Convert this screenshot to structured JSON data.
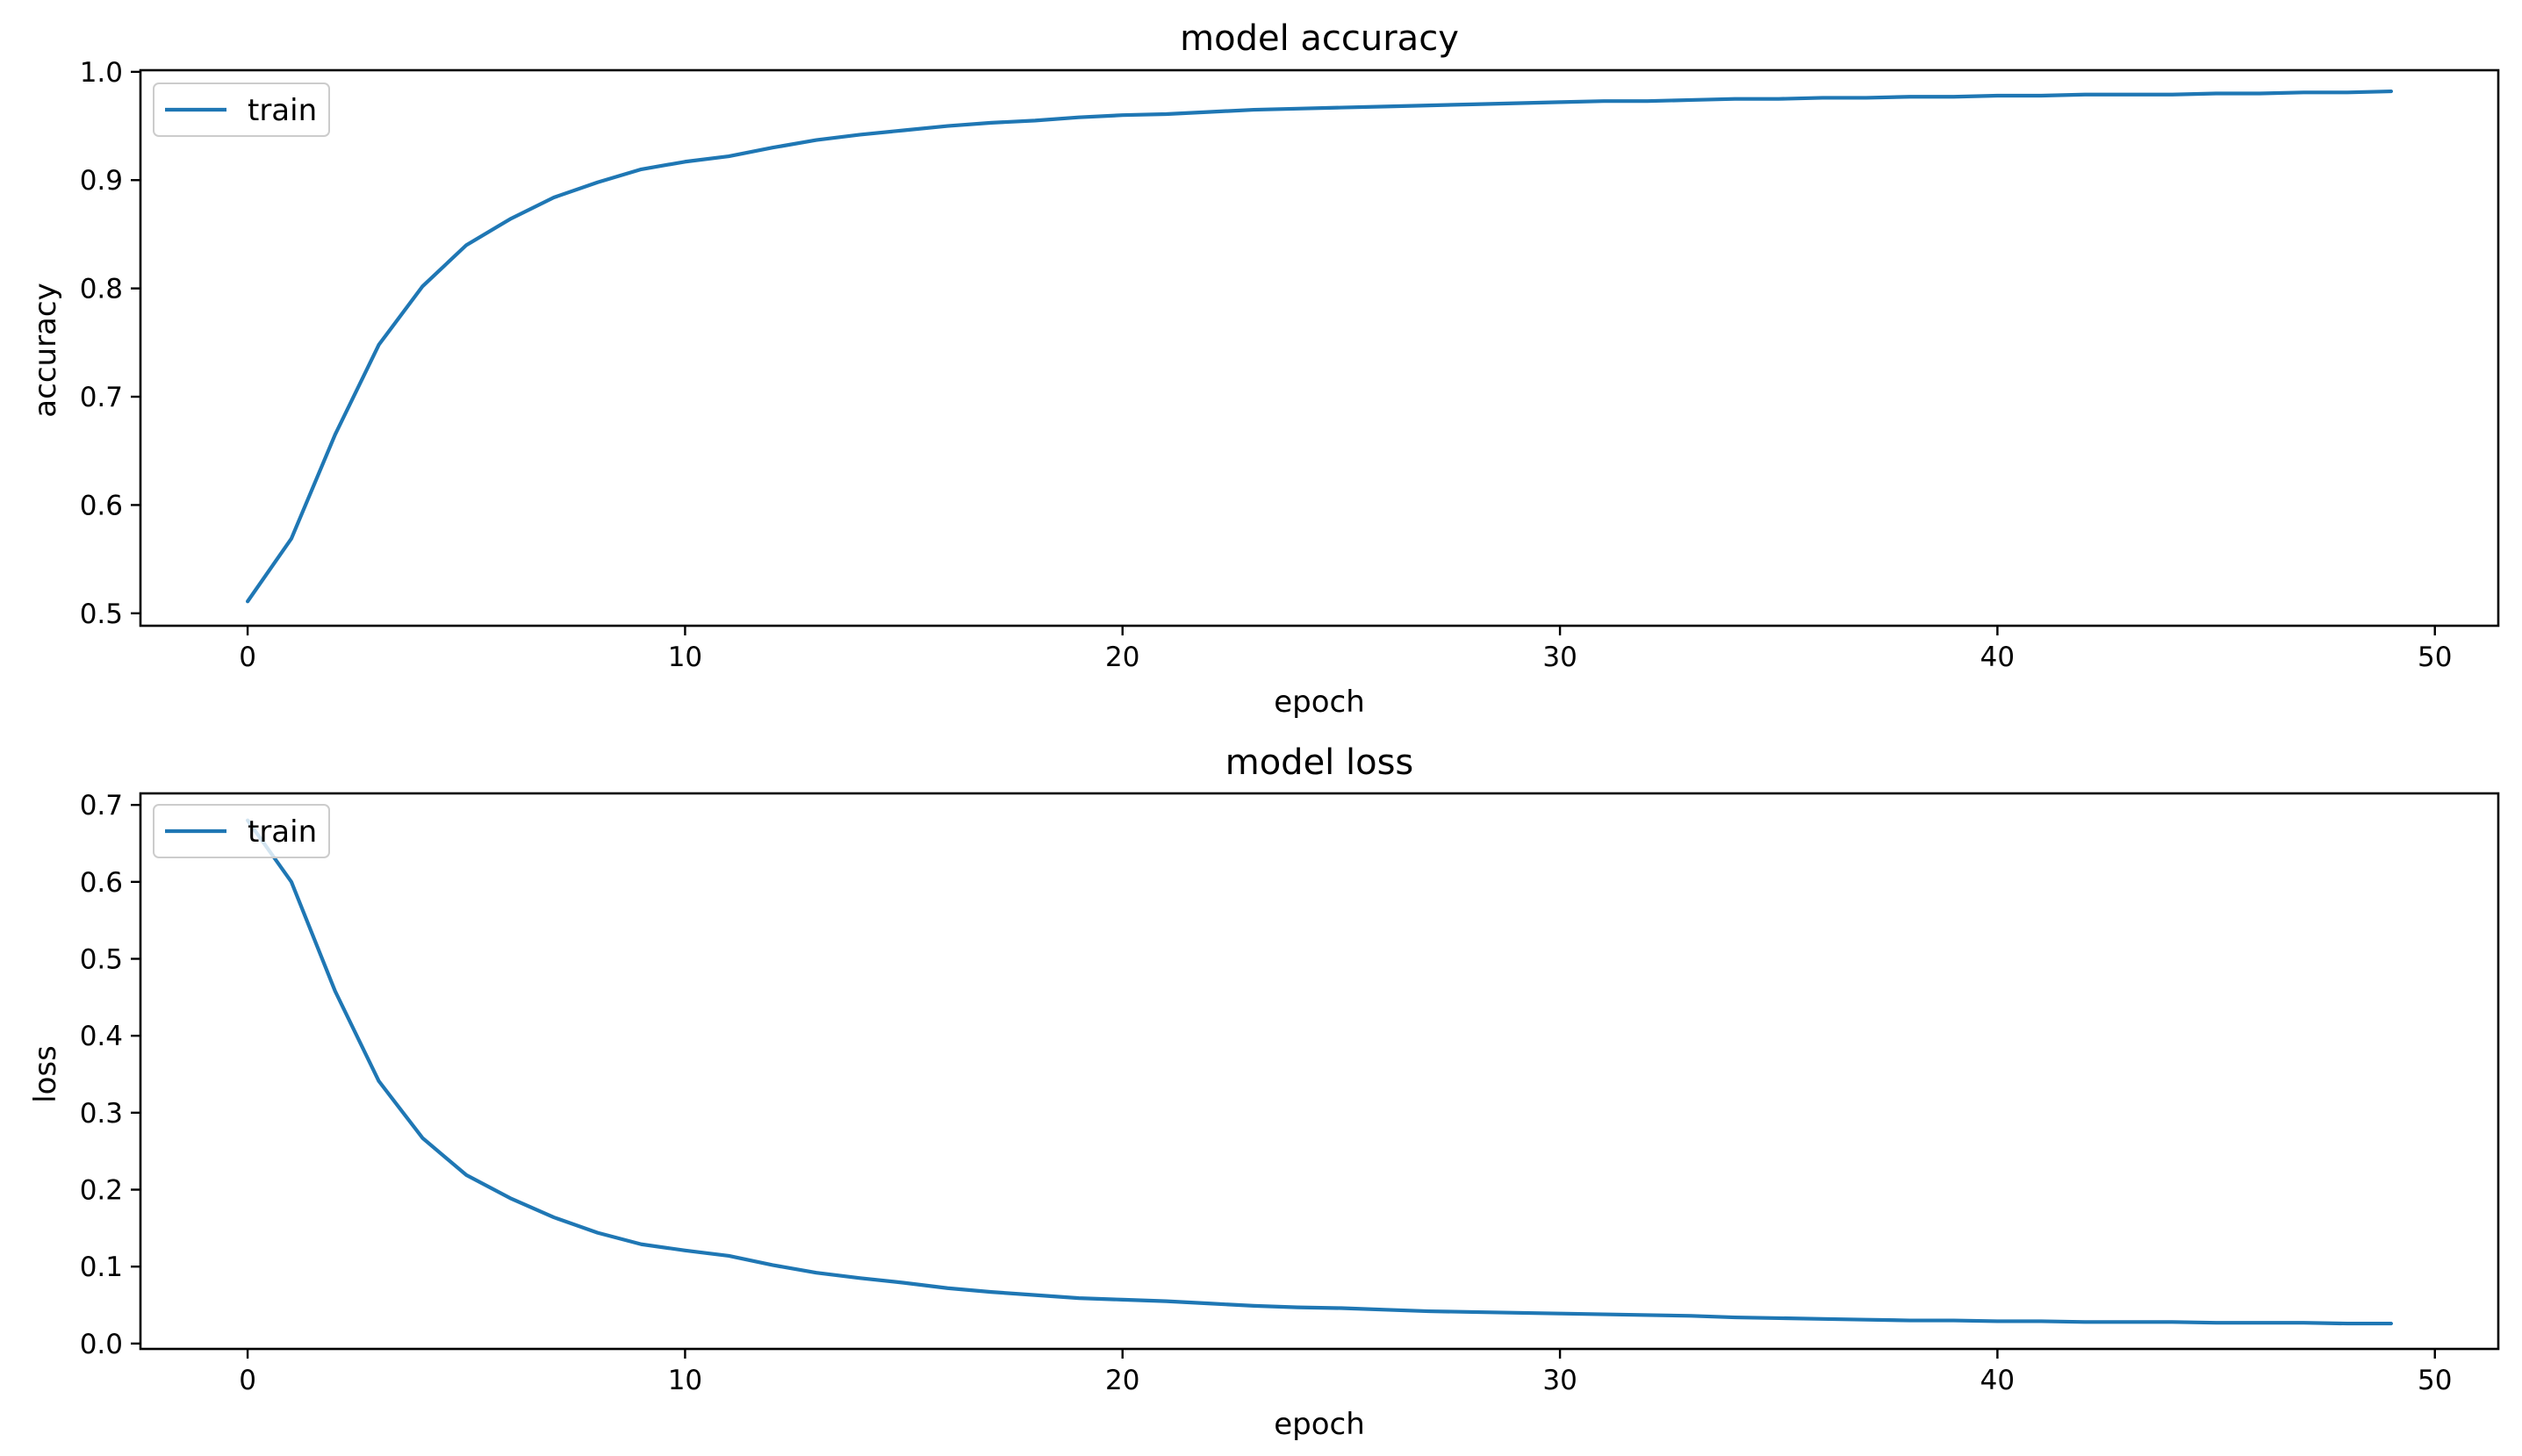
{
  "chart_data": [
    {
      "type": "line",
      "title": "model accuracy",
      "xlabel": "epoch",
      "ylabel": "accuracy",
      "xlim": [
        -2.45,
        51.45
      ],
      "ylim": [
        0.4885,
        1.0015
      ],
      "xticks": [
        0,
        10,
        20,
        30,
        40,
        50
      ],
      "yticks": [
        0.5,
        0.6,
        0.7,
        0.8,
        0.9,
        1.0
      ],
      "xtick_labels": [
        "0",
        "10",
        "20",
        "30",
        "40",
        "50"
      ],
      "ytick_labels": [
        "0.5",
        "0.6",
        "0.7",
        "0.8",
        "0.9",
        "1.0"
      ],
      "grid": false,
      "legend": {
        "placement": "upper-left",
        "entries": [
          "train"
        ]
      },
      "series": [
        {
          "name": "train",
          "color": "#1f77b4",
          "x": [
            0,
            1,
            2,
            3,
            4,
            5,
            6,
            7,
            8,
            9,
            10,
            11,
            12,
            13,
            14,
            15,
            16,
            17,
            18,
            19,
            20,
            21,
            22,
            23,
            24,
            25,
            26,
            27,
            28,
            29,
            30,
            31,
            32,
            33,
            34,
            35,
            36,
            37,
            38,
            39,
            40,
            41,
            42,
            43,
            44,
            45,
            46,
            47,
            48,
            49
          ],
          "y": [
            0.511,
            0.569,
            0.665,
            0.748,
            0.802,
            0.84,
            0.864,
            0.884,
            0.898,
            0.91,
            0.917,
            0.922,
            0.93,
            0.937,
            0.942,
            0.946,
            0.95,
            0.953,
            0.955,
            0.958,
            0.96,
            0.961,
            0.963,
            0.965,
            0.966,
            0.967,
            0.968,
            0.969,
            0.97,
            0.971,
            0.972,
            0.973,
            0.973,
            0.974,
            0.975,
            0.975,
            0.976,
            0.976,
            0.977,
            0.977,
            0.978,
            0.978,
            0.979,
            0.979,
            0.979,
            0.98,
            0.98,
            0.981,
            0.981,
            0.982
          ]
        }
      ]
    },
    {
      "type": "line",
      "title": "model loss",
      "xlabel": "epoch",
      "ylabel": "loss",
      "xlim": [
        -2.45,
        51.45
      ],
      "ylim": [
        -0.007,
        0.715
      ],
      "xticks": [
        0,
        10,
        20,
        30,
        40,
        50
      ],
      "yticks": [
        0.0,
        0.1,
        0.2,
        0.3,
        0.4,
        0.5,
        0.6,
        0.7
      ],
      "xtick_labels": [
        "0",
        "10",
        "20",
        "30",
        "40",
        "50"
      ],
      "ytick_labels": [
        "0.0",
        "0.1",
        "0.2",
        "0.3",
        "0.4",
        "0.5",
        "0.6",
        "0.7"
      ],
      "grid": false,
      "legend": {
        "placement": "upper-left",
        "entries": [
          "train"
        ]
      },
      "series": [
        {
          "name": "train",
          "color": "#1f77b4",
          "x": [
            0,
            1,
            2,
            3,
            4,
            5,
            6,
            7,
            8,
            9,
            10,
            11,
            12,
            13,
            14,
            15,
            16,
            17,
            18,
            19,
            20,
            21,
            22,
            23,
            24,
            25,
            26,
            27,
            28,
            29,
            30,
            31,
            32,
            33,
            34,
            35,
            36,
            37,
            38,
            39,
            40,
            41,
            42,
            43,
            44,
            45,
            46,
            47,
            48,
            49
          ],
          "y": [
            0.68,
            0.6,
            0.458,
            0.341,
            0.267,
            0.219,
            0.189,
            0.164,
            0.144,
            0.129,
            0.121,
            0.114,
            0.102,
            0.092,
            0.085,
            0.079,
            0.072,
            0.067,
            0.063,
            0.059,
            0.057,
            0.055,
            0.052,
            0.049,
            0.047,
            0.046,
            0.044,
            0.042,
            0.041,
            0.04,
            0.039,
            0.038,
            0.037,
            0.036,
            0.034,
            0.033,
            0.032,
            0.031,
            0.03,
            0.03,
            0.029,
            0.029,
            0.028,
            0.028,
            0.028,
            0.027,
            0.027,
            0.027,
            0.026,
            0.026
          ]
        }
      ]
    }
  ]
}
